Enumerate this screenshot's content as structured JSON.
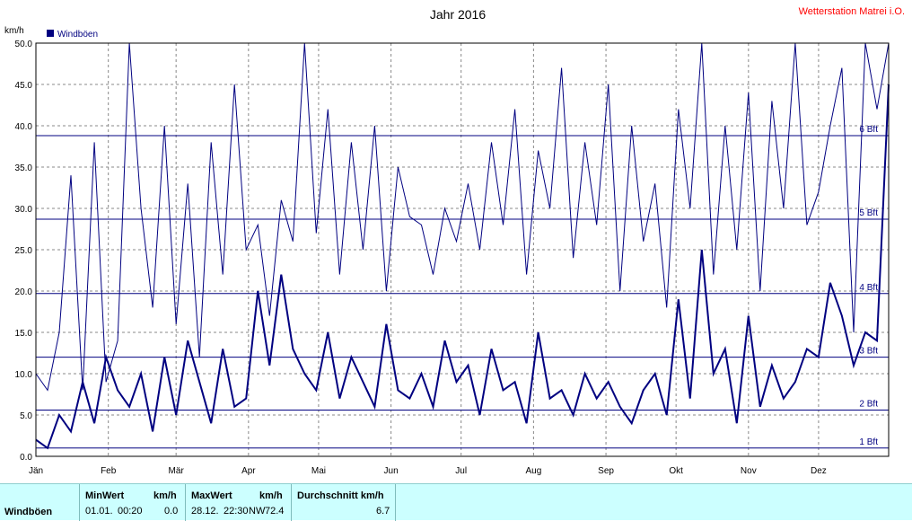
{
  "chart_title": "Jahr 2016",
  "station": "Wetterstation Matrei i.O.",
  "colors": {
    "series": "#000080",
    "gridline": "#888888",
    "stats_bg": "#ccffff",
    "station": "#ff0000"
  },
  "chart_data": {
    "type": "line",
    "title": "Jahr 2016",
    "ylabel": "km/h",
    "ylim": [
      0,
      50
    ],
    "yticks": [
      "0.0",
      "5.0",
      "10.0",
      "15.0",
      "20.0",
      "25.0",
      "30.0",
      "35.0",
      "40.0",
      "45.0",
      "50.0"
    ],
    "months": [
      "Jän",
      "Feb",
      "Mär",
      "Apr",
      "Mai",
      "Jun",
      "Jul",
      "Aug",
      "Sep",
      "Okt",
      "Nov",
      "Dez"
    ],
    "legend": "Windböen",
    "legend_position": "top-left",
    "grid": true,
    "beaufort": [
      {
        "label": "1 Bft",
        "kmh": 1.0
      },
      {
        "label": "2 Bft",
        "kmh": 5.6
      },
      {
        "label": "3 Bft",
        "kmh": 12.0
      },
      {
        "label": "4 Bft",
        "kmh": 19.7
      },
      {
        "label": "5 Bft",
        "kmh": 28.7
      },
      {
        "label": "6 Bft",
        "kmh": 38.8
      }
    ],
    "series": [
      {
        "name": "Windböen",
        "x_unit": "day of year 2016",
        "x": [
          1,
          6,
          11,
          16,
          21,
          26,
          31,
          36,
          41,
          46,
          51,
          56,
          61,
          66,
          71,
          76,
          81,
          86,
          91,
          96,
          101,
          106,
          111,
          116,
          121,
          126,
          131,
          136,
          141,
          146,
          151,
          156,
          161,
          166,
          171,
          176,
          181,
          186,
          191,
          196,
          201,
          206,
          211,
          216,
          221,
          226,
          231,
          236,
          241,
          246,
          251,
          256,
          261,
          266,
          271,
          276,
          281,
          286,
          291,
          296,
          301,
          306,
          311,
          316,
          321,
          326,
          331,
          336,
          341,
          346,
          351,
          356,
          361,
          366
        ],
        "y": [
          10,
          8,
          15,
          34,
          8,
          38,
          9,
          14,
          50,
          30,
          18,
          40,
          16,
          33,
          12,
          38,
          22,
          45,
          25,
          28,
          17,
          31,
          26,
          50,
          27,
          42,
          22,
          38,
          25,
          40,
          20,
          35,
          29,
          28,
          22,
          30,
          26,
          33,
          25,
          38,
          28,
          42,
          22,
          37,
          30,
          47,
          24,
          38,
          28,
          45,
          20,
          40,
          26,
          33,
          18,
          42,
          30,
          50,
          22,
          40,
          25,
          44,
          20,
          43,
          30,
          50,
          28,
          32,
          40,
          47,
          15,
          50,
          42,
          50
        ],
        "y2": [
          2,
          1,
          5,
          3,
          9,
          4,
          12,
          8,
          6,
          10,
          3,
          12,
          5,
          14,
          9,
          4,
          13,
          6,
          7,
          20,
          11,
          22,
          13,
          10,
          8,
          15,
          7,
          12,
          9,
          6,
          16,
          8,
          7,
          10,
          6,
          14,
          9,
          11,
          5,
          13,
          8,
          9,
          4,
          15,
          7,
          8,
          5,
          10,
          7,
          9,
          6,
          4,
          8,
          10,
          5,
          19,
          7,
          25,
          10,
          13,
          4,
          17,
          6,
          11,
          7,
          9,
          13,
          12,
          21,
          17,
          11,
          15,
          14,
          45
        ]
      }
    ]
  },
  "stats": {
    "row_label": "Windböen",
    "min_header": "MinWert",
    "min_unit": "km/h",
    "min_date": "01.01.",
    "min_time": "00:20",
    "min_value": "0.0",
    "max_header": "MaxWert",
    "max_unit": "km/h",
    "max_date": "28.12.",
    "max_time": "22:30",
    "max_dir": "NW",
    "max_value": "72.4",
    "avg_header": "Durchschnitt km/h",
    "avg_value": "6.7"
  }
}
